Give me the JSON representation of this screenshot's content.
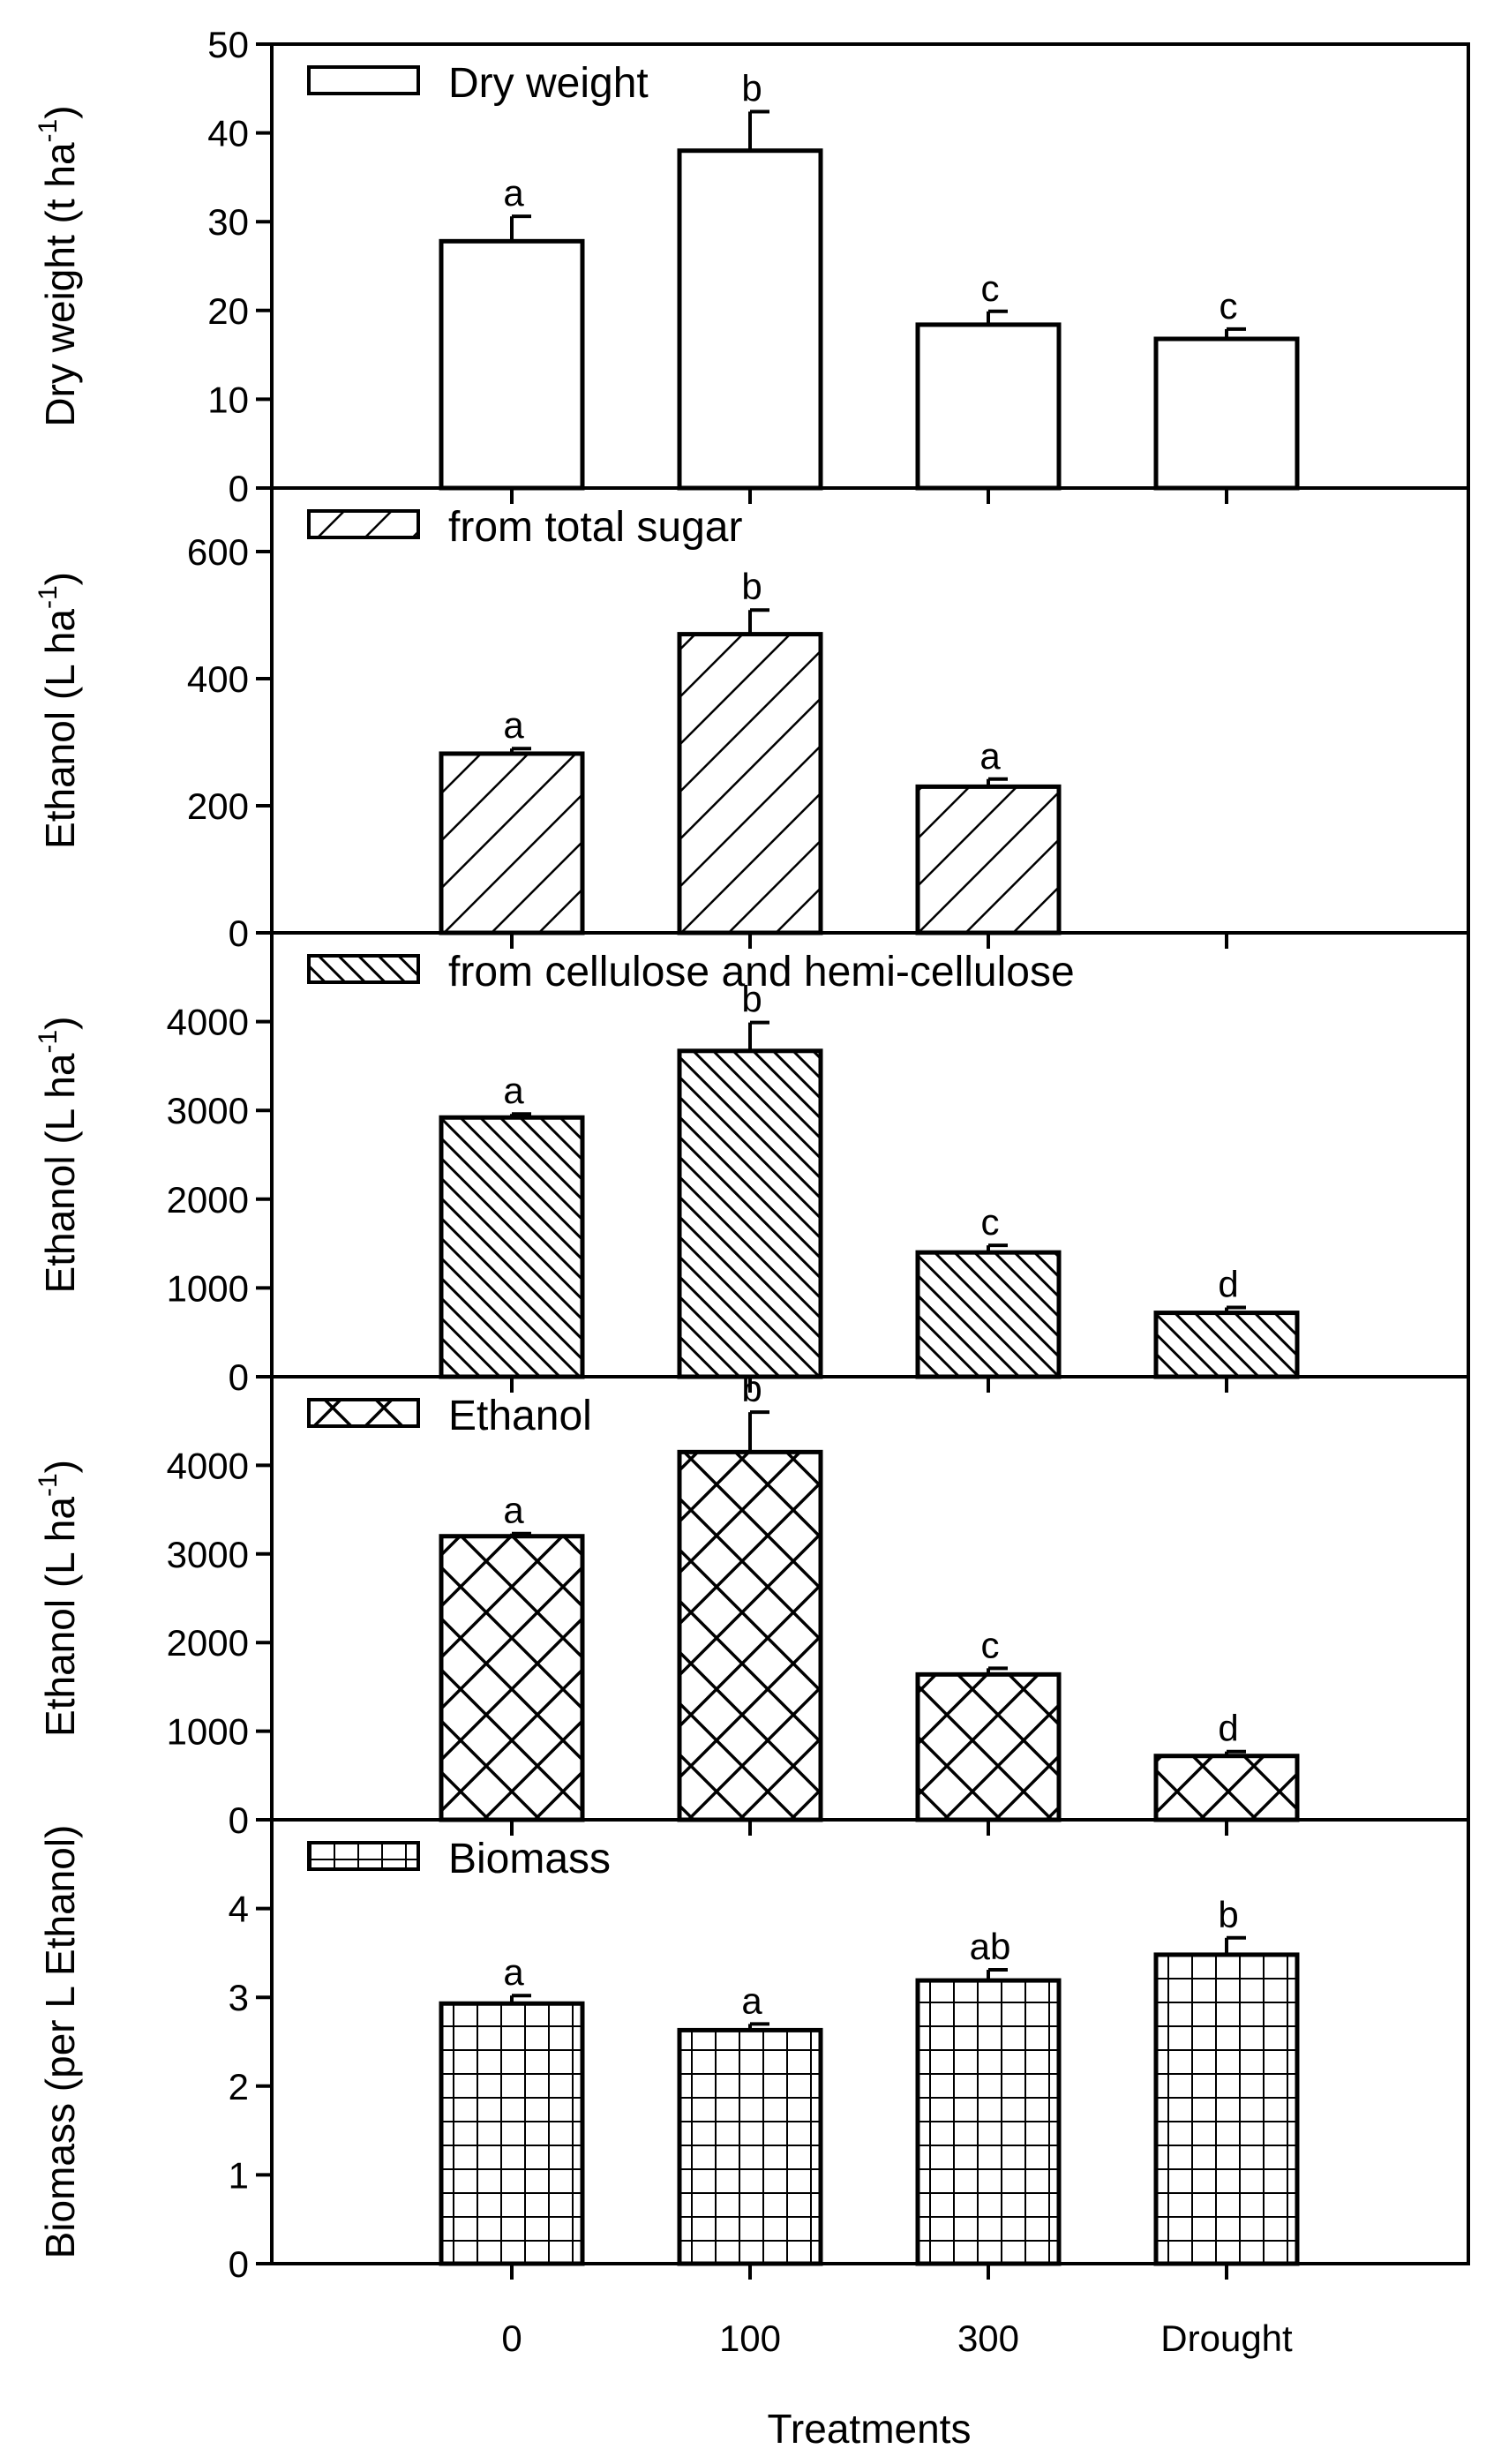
{
  "x_axis": {
    "title": "Treatments",
    "categories": [
      "0",
      "100",
      "300",
      "Drought"
    ]
  },
  "chart_data": [
    {
      "type": "bar",
      "title": "",
      "legend": "Dry weight",
      "pattern": "open",
      "ylabel_main": "Dry weight (t ha",
      "ylabel_sup": "-1",
      "ylabel_tail": ")",
      "ylim": [
        0,
        50
      ],
      "yticks": [
        0,
        10,
        20,
        30,
        40,
        50
      ],
      "categories": [
        "0",
        "100",
        "300",
        "Drought"
      ],
      "values": [
        27.8,
        38.0,
        18.4,
        16.8
      ],
      "errors": [
        2.8,
        4.4,
        1.5,
        1.1
      ],
      "letters": [
        "a",
        "b",
        "c",
        "c"
      ]
    },
    {
      "type": "bar",
      "title": "",
      "legend": "from total sugar",
      "pattern": "diag-wide",
      "ylabel_main": "Ethanol (L ha",
      "ylabel_sup": "-1",
      "ylabel_tail": ")",
      "ylim": [
        0,
        700
      ],
      "yticks": [
        0,
        200,
        400,
        600
      ],
      "categories": [
        "0",
        "100",
        "300",
        "Drought"
      ],
      "values": [
        282,
        470,
        230,
        null
      ],
      "errors": [
        8,
        38,
        12,
        null
      ],
      "letters": [
        "a",
        "b",
        "a",
        ""
      ]
    },
    {
      "type": "bar",
      "title": "",
      "legend": "from cellulose and hemi-cellulose",
      "pattern": "diag-dense",
      "ylabel_main": "Ethanol (L ha",
      "ylabel_sup": "-1",
      "ylabel_tail": ")",
      "ylim": [
        0,
        5000
      ],
      "yticks": [
        0,
        1000,
        2000,
        3000,
        4000
      ],
      "categories": [
        "0",
        "100",
        "300",
        "Drought"
      ],
      "values": [
        2920,
        3670,
        1400,
        720
      ],
      "errors": [
        40,
        320,
        80,
        60
      ],
      "letters": [
        "a",
        "b",
        "c",
        "d"
      ]
    },
    {
      "type": "bar",
      "title": "",
      "legend": "Ethanol",
      "pattern": "crosshatch",
      "ylabel_main": "Ethanol (L ha",
      "ylabel_sup": "-1",
      "ylabel_tail": ")",
      "ylim": [
        0,
        5000
      ],
      "yticks": [
        0,
        1000,
        2000,
        3000,
        4000
      ],
      "categories": [
        "0",
        "100",
        "300",
        "Drought"
      ],
      "values": [
        3200,
        4150,
        1640,
        720
      ],
      "errors": [
        30,
        450,
        70,
        50
      ],
      "letters": [
        "a",
        "b",
        "c",
        "d"
      ]
    },
    {
      "type": "bar",
      "title": "",
      "legend": "Biomass",
      "pattern": "grid",
      "ylabel_main": "Biomass (per L Ethanol)",
      "ylabel_sup": "",
      "ylabel_tail": "",
      "ylim": [
        0,
        5
      ],
      "yticks": [
        0,
        1,
        2,
        3,
        4
      ],
      "categories": [
        "0",
        "100",
        "300",
        "Drought"
      ],
      "values": [
        2.93,
        2.63,
        3.19,
        3.48
      ],
      "errors": [
        0.09,
        0.07,
        0.12,
        0.19
      ],
      "letters": [
        "a",
        "a",
        "ab",
        "b"
      ]
    }
  ]
}
